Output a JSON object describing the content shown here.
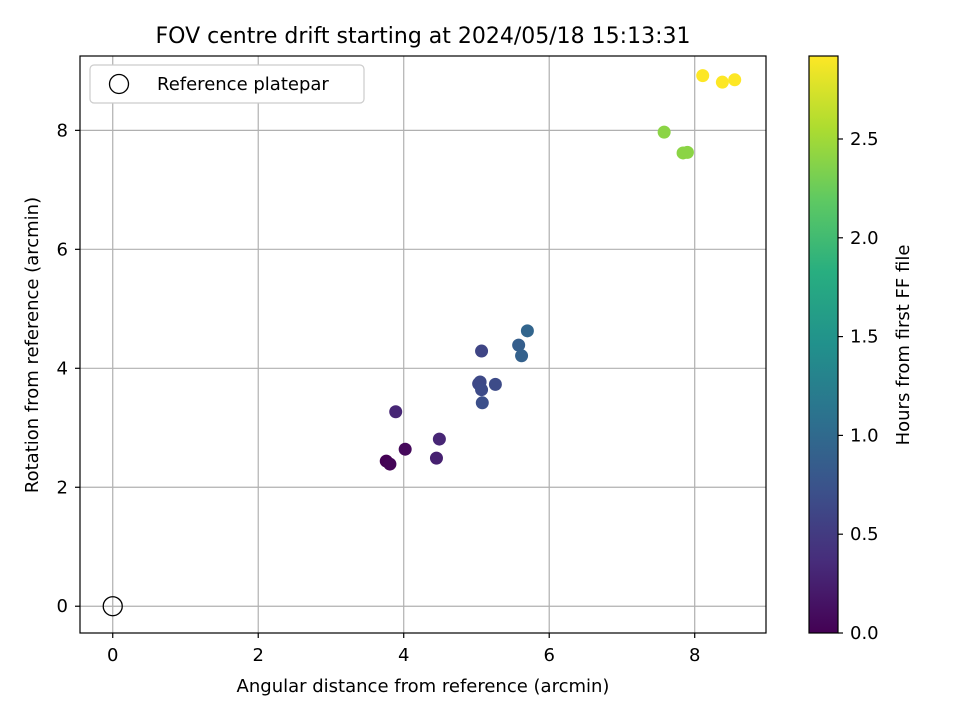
{
  "chart_data": {
    "type": "scatter",
    "title": "FOV centre drift starting at 2024/05/18 15:13:31",
    "xlabel": "Angular distance from reference (arcmin)",
    "ylabel": "Rotation from reference (arcmin)",
    "xlim": [
      -0.45,
      8.98
    ],
    "ylim": [
      -0.45,
      9.25
    ],
    "xticks": [
      0,
      2,
      4,
      6,
      8
    ],
    "yticks": [
      0,
      2,
      4,
      6,
      8
    ],
    "grid": true,
    "legend": {
      "position": "top-left",
      "entries": [
        "Reference platepar"
      ]
    },
    "reference": {
      "name": "Reference platepar",
      "x": 0,
      "y": 0
    },
    "colorbar": {
      "label": "Hours from first FF file",
      "min": 0.0,
      "max": 2.92,
      "ticks": [
        "0.0",
        "0.5",
        "1.0",
        "1.5",
        "2.0",
        "2.5"
      ],
      "colormap": "viridis"
    },
    "points": [
      {
        "x": 3.76,
        "y": 2.44,
        "hours": 0.0
      },
      {
        "x": 3.81,
        "y": 2.39,
        "hours": 0.03
      },
      {
        "x": 4.02,
        "y": 2.64,
        "hours": 0.07
      },
      {
        "x": 4.45,
        "y": 2.49,
        "hours": 0.26
      },
      {
        "x": 4.49,
        "y": 2.81,
        "hours": 0.31
      },
      {
        "x": 3.89,
        "y": 3.27,
        "hours": 0.31
      },
      {
        "x": 5.07,
        "y": 4.29,
        "hours": 0.6
      },
      {
        "x": 5.03,
        "y": 3.74,
        "hours": 0.64
      },
      {
        "x": 5.05,
        "y": 3.77,
        "hours": 0.64
      },
      {
        "x": 5.07,
        "y": 3.64,
        "hours": 0.66
      },
      {
        "x": 5.26,
        "y": 3.73,
        "hours": 0.66
      },
      {
        "x": 5.08,
        "y": 3.42,
        "hours": 0.7
      },
      {
        "x": 5.58,
        "y": 4.39,
        "hours": 0.87
      },
      {
        "x": 5.62,
        "y": 4.21,
        "hours": 0.9
      },
      {
        "x": 5.7,
        "y": 4.63,
        "hours": 0.95
      },
      {
        "x": 7.58,
        "y": 7.97,
        "hours": 2.4
      },
      {
        "x": 7.84,
        "y": 7.62,
        "hours": 2.4
      },
      {
        "x": 7.9,
        "y": 7.63,
        "hours": 2.4
      },
      {
        "x": 8.11,
        "y": 8.92,
        "hours": 2.92
      },
      {
        "x": 8.38,
        "y": 8.81,
        "hours": 2.92
      },
      {
        "x": 8.55,
        "y": 8.85,
        "hours": 2.92
      }
    ]
  }
}
